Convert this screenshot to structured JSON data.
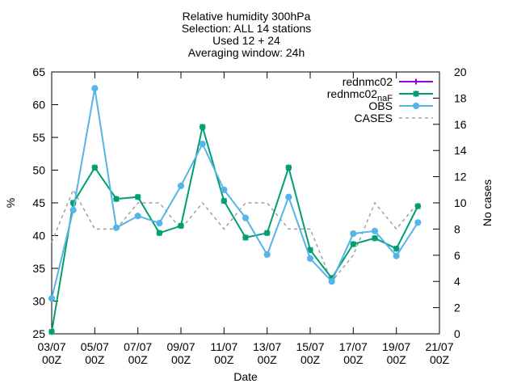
{
  "chart_data": {
    "type": "line",
    "title_lines": [
      "Relative humidity 300hPa",
      "Selection: ALL     14 stations",
      "Used 12 + 24",
      "Averaging window: 24h"
    ],
    "xlabel": "Date",
    "ylabel": "%",
    "y2label": "No cases",
    "x_tick_labels": [
      {
        "day": 0,
        "line1": "03/07",
        "line2": "00Z"
      },
      {
        "day": 2,
        "line1": "05/07",
        "line2": "00Z"
      },
      {
        "day": 4,
        "line1": "07/07",
        "line2": "00Z"
      },
      {
        "day": 6,
        "line1": "09/07",
        "line2": "00Z"
      },
      {
        "day": 8,
        "line1": "11/07",
        "line2": "00Z"
      },
      {
        "day": 10,
        "line1": "13/07",
        "line2": "00Z"
      },
      {
        "day": 12,
        "line1": "15/07",
        "line2": "00Z"
      },
      {
        "day": 14,
        "line1": "17/07",
        "line2": "00Z"
      },
      {
        "day": 16,
        "line1": "19/07",
        "line2": "00Z"
      },
      {
        "day": 18,
        "line1": "21/07",
        "line2": "00Z"
      }
    ],
    "xlim_days": [
      0,
      18
    ],
    "ylim": [
      25,
      65
    ],
    "yticks": [
      25,
      30,
      35,
      40,
      45,
      50,
      55,
      60,
      65
    ],
    "y2lim": [
      0,
      20
    ],
    "y2ticks": [
      0,
      2,
      4,
      6,
      8,
      10,
      12,
      14,
      16,
      18,
      20
    ],
    "x_days": [
      0,
      1,
      2,
      3,
      4,
      5,
      6,
      7,
      8,
      9,
      10,
      11,
      12,
      13,
      14,
      15,
      16,
      17
    ],
    "series": [
      {
        "name": "rednmc02",
        "axis": "y",
        "color": "#9400d3",
        "marker": "plus",
        "values": []
      },
      {
        "name": "rednmc02_naF",
        "axis": "y",
        "color": "#009e73",
        "marker": "star",
        "values": [
          25.3,
          45.0,
          50.4,
          45.6,
          45.9,
          40.4,
          41.5,
          56.6,
          45.3,
          39.7,
          40.4,
          50.4,
          37.8,
          33.5,
          38.7,
          39.6,
          38.0,
          44.5
        ]
      },
      {
        "name": "OBS",
        "axis": "y",
        "color": "#56b4e9",
        "marker": "circle",
        "values": [
          30.4,
          43.9,
          62.5,
          41.2,
          43.0,
          41.9,
          47.6,
          54.0,
          47.0,
          42.7,
          37.1,
          45.9,
          36.5,
          33.0,
          40.3,
          40.7,
          36.9,
          42.0
        ]
      },
      {
        "name": "CASES",
        "axis": "y2",
        "color": "#a0a0a0",
        "dashed": true,
        "values": [
          7,
          11,
          8,
          8,
          10,
          10,
          8,
          10,
          8,
          10,
          10,
          8,
          8,
          4,
          6,
          10,
          8,
          10
        ]
      }
    ],
    "legend_position": "top-right",
    "legend_name_parts": {
      "rednmc02_naF": {
        "base": "rednmc02",
        "sub": "naF"
      }
    }
  }
}
